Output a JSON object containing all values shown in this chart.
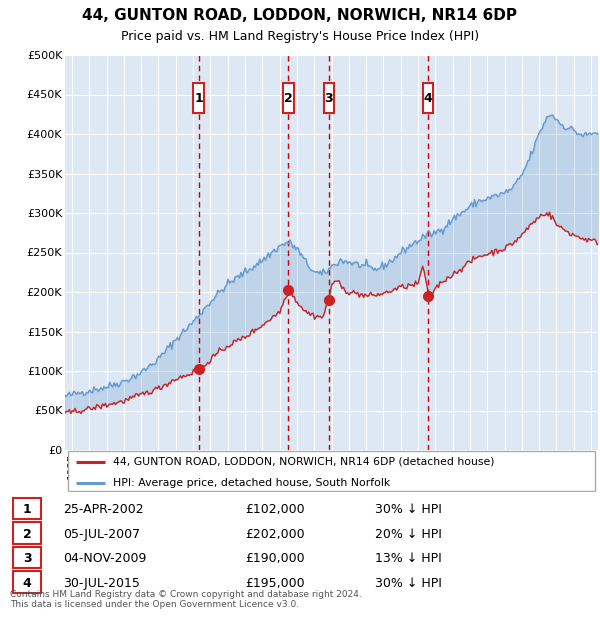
{
  "title": "44, GUNTON ROAD, LODDON, NORWICH, NR14 6DP",
  "subtitle": "Price paid vs. HM Land Registry's House Price Index (HPI)",
  "legend_label_red": "44, GUNTON ROAD, LODDON, NORWICH, NR14 6DP (detached house)",
  "legend_label_blue": "HPI: Average price, detached house, South Norfolk",
  "footer": "Contains HM Land Registry data © Crown copyright and database right 2024.\nThis data is licensed under the Open Government Licence v3.0.",
  "transactions": [
    {
      "num": 1,
      "date": "25-APR-2002",
      "price": 102000,
      "pct": "30%",
      "dir": "↓"
    },
    {
      "num": 2,
      "date": "05-JUL-2007",
      "price": 202000,
      "pct": "20%",
      "dir": "↓"
    },
    {
      "num": 3,
      "date": "04-NOV-2009",
      "price": 190000,
      "pct": "13%",
      "dir": "↓"
    },
    {
      "num": 4,
      "date": "30-JUL-2015",
      "price": 195000,
      "pct": "30%",
      "dir": "↓"
    }
  ],
  "transaction_dates_decimal": [
    2002.32,
    2007.51,
    2009.84,
    2015.58
  ],
  "transaction_prices": [
    102000,
    202000,
    190000,
    195000
  ],
  "hpi_color": "#6699cc",
  "price_color": "#cc2222",
  "vline_color": "#cc0000",
  "box_color": "#cc2222",
  "background_chart": "#dde8f4",
  "grid_color": "#ffffff",
  "ylim": [
    0,
    500000
  ],
  "xlim_start": 1994.6,
  "xlim_end": 2025.4
}
